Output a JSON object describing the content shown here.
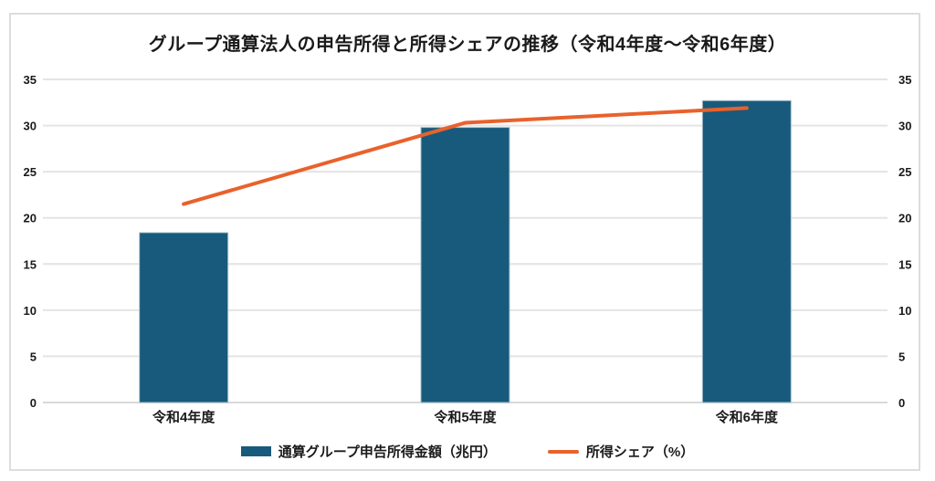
{
  "title": "グループ通算法人の申告所得と所得シェアの推移（令和4年度～令和6年度）",
  "chart_data": {
    "type": "bar",
    "subtype": "combo-bar-line",
    "title": "グループ通算法人の申告所得と所得シェアの推移（令和4年度～令和6年度）",
    "categories": [
      "令和4年度",
      "令和5年度",
      "令和6年度"
    ],
    "series": [
      {
        "name": "通算グループ申告所得金額（兆円）",
        "type": "bar",
        "axis": "left",
        "values": [
          18.4,
          29.8,
          32.7
        ],
        "color": "#175A7C"
      },
      {
        "name": "所得シェア（%）",
        "type": "line",
        "axis": "right",
        "values": [
          21.5,
          30.3,
          31.9
        ],
        "color": "#E8622C"
      }
    ],
    "left_axis": {
      "label": "",
      "min": 0,
      "max": 35,
      "step": 5,
      "ticks": [
        0,
        5,
        10,
        15,
        20,
        25,
        30,
        35
      ]
    },
    "right_axis": {
      "label": "",
      "min": 0,
      "max": 35,
      "step": 5,
      "ticks": [
        0,
        5,
        10,
        15,
        20,
        25,
        30,
        35
      ]
    },
    "xlabel": "",
    "ylabel": "",
    "grid": true,
    "legend_position": "bottom"
  },
  "colors": {
    "bar": "#175A7C",
    "bar_edge": "#A9C1CE",
    "line": "#E8622C",
    "grid": "#E4E4E4",
    "axis_line": "#D9D9D9",
    "text": "#1A1A1A",
    "frame_border": "#DDDDDD",
    "background": "#FFFFFF"
  }
}
